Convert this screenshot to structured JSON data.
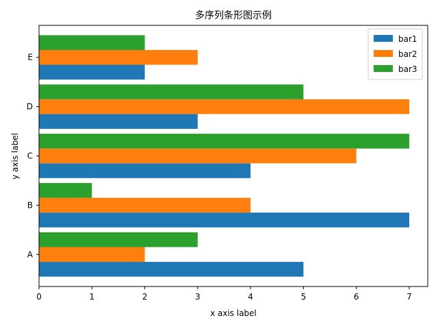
{
  "chart_data": {
    "type": "bar",
    "orientation": "horizontal",
    "title": "多序列条形图示例",
    "xlabel": "x axis label",
    "ylabel": "y axis label",
    "categories": [
      "A",
      "B",
      "C",
      "D",
      "E"
    ],
    "xlim": [
      0,
      7.35
    ],
    "xticks": [
      "0",
      "1",
      "2",
      "3",
      "4",
      "5",
      "6",
      "7"
    ],
    "grid": false,
    "legend_position": "top-right",
    "series": [
      {
        "name": "bar1",
        "color": "#1f77b4",
        "values": [
          5,
          7,
          4,
          3,
          2
        ]
      },
      {
        "name": "bar2",
        "color": "#ff7f0e",
        "values": [
          2,
          4,
          6,
          7,
          3
        ]
      },
      {
        "name": "bar3",
        "color": "#2ca02c",
        "values": [
          3,
          1,
          7,
          5,
          2
        ]
      }
    ]
  }
}
